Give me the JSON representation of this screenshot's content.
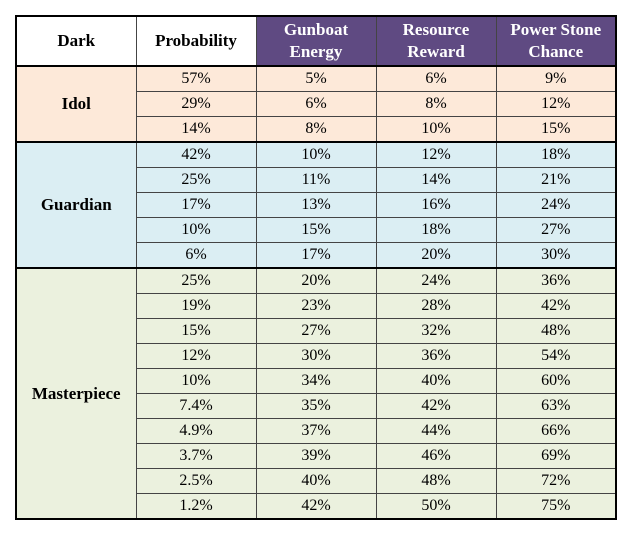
{
  "table": {
    "header": [
      "Dark",
      "Probability",
      "Gunboat Energy",
      "Resource Reward",
      "Power Stone Chance"
    ],
    "groups": [
      {
        "name": "Idol",
        "rows": [
          [
            "57%",
            "5%",
            "6%",
            "9%"
          ],
          [
            "29%",
            "6%",
            "8%",
            "12%"
          ],
          [
            "14%",
            "8%",
            "10%",
            "15%"
          ]
        ]
      },
      {
        "name": "Guardian",
        "rows": [
          [
            "42%",
            "10%",
            "12%",
            "18%"
          ],
          [
            "25%",
            "11%",
            "14%",
            "21%"
          ],
          [
            "17%",
            "13%",
            "16%",
            "24%"
          ],
          [
            "10%",
            "15%",
            "18%",
            "27%"
          ],
          [
            "6%",
            "17%",
            "20%",
            "30%"
          ]
        ]
      },
      {
        "name": "Masterpiece",
        "rows": [
          [
            "25%",
            "20%",
            "24%",
            "36%"
          ],
          [
            "19%",
            "23%",
            "28%",
            "42%"
          ],
          [
            "15%",
            "27%",
            "32%",
            "48%"
          ],
          [
            "12%",
            "30%",
            "36%",
            "54%"
          ],
          [
            "10%",
            "34%",
            "40%",
            "60%"
          ],
          [
            "7.4%",
            "35%",
            "42%",
            "63%"
          ],
          [
            "4.9%",
            "37%",
            "44%",
            "66%"
          ],
          [
            "3.7%",
            "39%",
            "46%",
            "69%"
          ],
          [
            "2.5%",
            "40%",
            "48%",
            "72%"
          ],
          [
            "1.2%",
            "42%",
            "50%",
            "75%"
          ]
        ]
      }
    ]
  }
}
